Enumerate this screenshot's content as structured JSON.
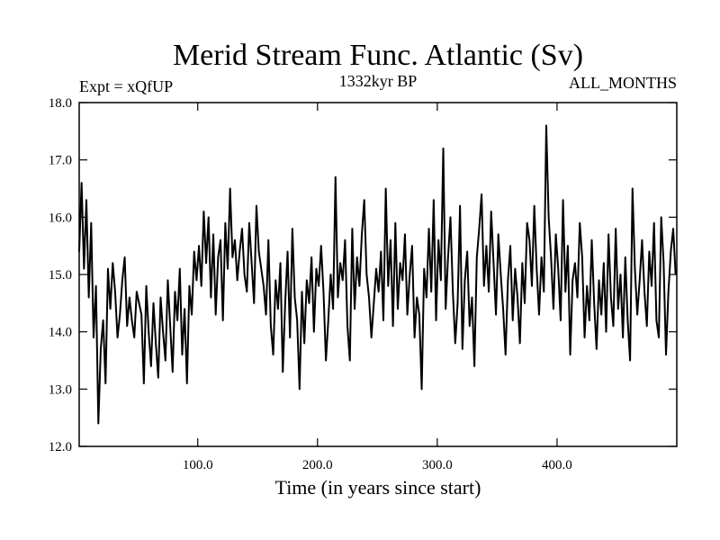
{
  "chart_data": {
    "type": "line",
    "title": "Merid Stream Func. Atlantic (Sv)",
    "subtitle_left": "Expt = xQfUP",
    "subtitle_center": "1332kyr BP",
    "subtitle_right": "ALL_MONTHS",
    "xlabel": "Time (in years since start)",
    "ylabel": "",
    "xlim": [
      1,
      500
    ],
    "ylim": [
      12.0,
      18.0
    ],
    "x_ticks": [
      100,
      200,
      300,
      400
    ],
    "x_tick_labels": [
      "100.0",
      "200.0",
      "300.0",
      "400.0"
    ],
    "y_ticks": [
      12,
      13,
      14,
      15,
      16,
      17,
      18
    ],
    "y_tick_labels": [
      "12.0",
      "13.0",
      "14.0",
      "15.0",
      "16.0",
      "17.0",
      "18.0"
    ],
    "grid": false,
    "series": [
      {
        "name": "Merid Stream Func. Atlantic",
        "color": "#000000",
        "x": [
          1,
          3,
          5,
          7,
          9,
          11,
          13,
          15,
          17,
          19,
          21,
          23,
          25,
          27,
          29,
          31,
          33,
          35,
          37,
          39,
          41,
          43,
          45,
          47,
          49,
          51,
          53,
          55,
          57,
          59,
          61,
          63,
          65,
          67,
          69,
          71,
          73,
          75,
          77,
          79,
          81,
          83,
          85,
          87,
          89,
          91,
          93,
          95,
          97,
          99,
          101,
          103,
          105,
          107,
          109,
          111,
          113,
          115,
          117,
          119,
          121,
          123,
          125,
          127,
          129,
          131,
          133,
          135,
          137,
          139,
          141,
          143,
          145,
          147,
          149,
          151,
          153,
          155,
          157,
          159,
          161,
          163,
          165,
          167,
          169,
          171,
          173,
          175,
          177,
          179,
          181,
          183,
          185,
          187,
          189,
          191,
          193,
          195,
          197,
          199,
          201,
          203,
          205,
          207,
          209,
          211,
          213,
          215,
          217,
          219,
          221,
          223,
          225,
          227,
          229,
          231,
          233,
          235,
          237,
          239,
          241,
          243,
          245,
          247,
          249,
          251,
          253,
          255,
          257,
          259,
          261,
          263,
          265,
          267,
          269,
          271,
          273,
          275,
          277,
          279,
          281,
          283,
          285,
          287,
          289,
          291,
          293,
          295,
          297,
          299,
          301,
          303,
          305,
          307,
          309,
          311,
          313,
          315,
          317,
          319,
          321,
          323,
          325,
          327,
          329,
          331,
          333,
          335,
          337,
          339,
          341,
          343,
          345,
          347,
          349,
          351,
          353,
          355,
          357,
          359,
          361,
          363,
          365,
          367,
          369,
          371,
          373,
          375,
          377,
          379,
          381,
          383,
          385,
          387,
          389,
          391,
          393,
          395,
          397,
          399,
          401,
          403,
          405,
          407,
          409,
          411,
          413,
          415,
          417,
          419,
          421,
          423,
          425,
          427,
          429,
          431,
          433,
          435,
          437,
          439,
          441,
          443,
          445,
          447,
          449,
          451,
          453,
          455,
          457,
          459,
          461,
          463,
          465,
          467,
          469,
          471,
          473,
          475,
          477,
          479,
          481,
          483,
          485,
          487,
          489,
          491,
          493,
          495,
          497,
          499
        ],
        "values": [
          15.4,
          16.6,
          15.1,
          16.3,
          14.6,
          15.9,
          13.9,
          14.8,
          12.4,
          13.7,
          14.2,
          13.1,
          15.1,
          14.4,
          15.2,
          14.7,
          13.9,
          14.3,
          14.9,
          15.3,
          14.1,
          14.6,
          14.2,
          13.9,
          14.7,
          14.5,
          14.3,
          13.1,
          14.8,
          14.0,
          13.4,
          14.5,
          13.8,
          13.2,
          14.6,
          14.0,
          13.5,
          14.9,
          14.1,
          13.3,
          14.7,
          14.2,
          15.1,
          13.6,
          14.4,
          13.1,
          14.8,
          14.3,
          15.4,
          14.9,
          15.5,
          14.8,
          16.1,
          15.2,
          16.0,
          14.6,
          15.7,
          14.3,
          15.3,
          15.6,
          14.2,
          15.9,
          15.1,
          16.5,
          15.3,
          15.6,
          14.9,
          15.4,
          15.8,
          15.0,
          14.7,
          15.9,
          15.2,
          14.5,
          16.2,
          15.4,
          15.1,
          14.8,
          14.3,
          15.6,
          14.1,
          13.6,
          14.9,
          14.4,
          15.2,
          13.3,
          14.5,
          15.4,
          13.9,
          15.8,
          14.6,
          14.2,
          13.0,
          14.7,
          13.8,
          14.9,
          14.5,
          15.3,
          14.0,
          15.1,
          14.8,
          15.5,
          14.7,
          13.5,
          14.2,
          15.0,
          14.4,
          16.7,
          14.6,
          15.2,
          14.9,
          15.6,
          14.1,
          13.5,
          15.8,
          14.4,
          15.3,
          14.8,
          15.7,
          16.3,
          15.0,
          14.6,
          13.9,
          14.5,
          15.1,
          14.7,
          15.4,
          14.2,
          16.5,
          14.8,
          15.6,
          14.1,
          15.9,
          14.4,
          15.2,
          14.9,
          15.7,
          14.3,
          15.0,
          15.5,
          13.9,
          14.6,
          14.3,
          13.0,
          15.1,
          14.6,
          15.8,
          14.7,
          16.3,
          14.2,
          15.6,
          14.9,
          17.2,
          14.4,
          15.3,
          16.0,
          14.7,
          13.8,
          14.5,
          16.2,
          13.7,
          14.9,
          15.4,
          14.1,
          14.6,
          13.4,
          15.3,
          15.8,
          16.4,
          14.8,
          15.5,
          14.7,
          16.1,
          15.2,
          14.3,
          15.7,
          15.0,
          14.4,
          13.6,
          14.9,
          15.5,
          14.2,
          15.1,
          14.6,
          13.8,
          15.2,
          14.5,
          15.9,
          15.6,
          14.8,
          16.2,
          15.1,
          14.3,
          15.3,
          14.7,
          17.6,
          16.0,
          15.3,
          14.4,
          15.7,
          15.1,
          14.2,
          16.3,
          14.7,
          15.5,
          13.6,
          14.9,
          15.2,
          14.6,
          15.9,
          15.3,
          13.9,
          14.8,
          14.2,
          15.6,
          14.5,
          13.7,
          14.9,
          14.3,
          15.2,
          14.0,
          15.7,
          14.6,
          14.1,
          15.8,
          14.4,
          15.0,
          13.9,
          15.3,
          14.2,
          13.5,
          16.5,
          15.1,
          14.3,
          14.9,
          15.6,
          14.7,
          14.1,
          15.4,
          14.8,
          15.9,
          14.2,
          13.9,
          16.0,
          15.2,
          13.6,
          14.7,
          15.4,
          15.8,
          15.0
        ]
      }
    ]
  }
}
